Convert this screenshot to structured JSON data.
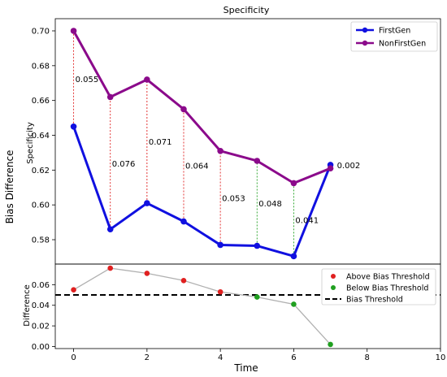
{
  "figure": {
    "ylabel": "Bias Difference",
    "xlabel": "Time"
  },
  "chart_data": [
    {
      "type": "line",
      "title": "Specificity",
      "xlabel": "",
      "ylabel": "Specificity",
      "x": [
        0,
        1,
        2,
        3,
        4,
        5,
        6,
        7
      ],
      "xlim": [
        -0.5,
        10
      ],
      "ylim": [
        0.566,
        0.707
      ],
      "yticks": [
        0.58,
        0.6,
        0.62,
        0.64,
        0.66,
        0.68,
        0.7
      ],
      "ytick_labels": [
        "0.58",
        "0.60",
        "0.62",
        "0.64",
        "0.66",
        "0.68",
        "0.70"
      ],
      "series": [
        {
          "name": "FirstGen",
          "color": "#1010e0",
          "values": [
            0.645,
            0.586,
            0.601,
            0.5905,
            0.577,
            0.5765,
            0.5705,
            0.623
          ]
        },
        {
          "name": "NonFirstGen",
          "color": "#8b0a8b",
          "values": [
            0.7,
            0.662,
            0.672,
            0.655,
            0.631,
            0.6253,
            0.6125,
            0.621
          ]
        }
      ],
      "difference_labels": [
        "0.055",
        "0.076",
        "0.071",
        "0.064",
        "0.053",
        "0.048",
        "0.041",
        "0.002"
      ],
      "connector_colors": [
        "#e02020",
        "#e02020",
        "#e02020",
        "#e02020",
        "#e02020",
        "#20a020",
        "#20a020",
        null
      ],
      "legend_position": "top-right",
      "grid": false
    },
    {
      "type": "scatter",
      "title": "",
      "xlabel": "Time",
      "ylabel": "Difference",
      "x": [
        0,
        1,
        2,
        3,
        4,
        5,
        6,
        7
      ],
      "values": [
        0.055,
        0.076,
        0.071,
        0.064,
        0.053,
        0.048,
        0.041,
        0.002
      ],
      "point_status": [
        "above",
        "above",
        "above",
        "above",
        "above",
        "below",
        "below",
        "below"
      ],
      "threshold": 0.05,
      "xlim": [
        -0.5,
        10
      ],
      "ylim": [
        -0.002,
        0.08
      ],
      "xticks": [
        0,
        2,
        4,
        6,
        8,
        10
      ],
      "xtick_labels": [
        "0",
        "2",
        "4",
        "6",
        "8",
        "10"
      ],
      "yticks": [
        0.0,
        0.02,
        0.04,
        0.06
      ],
      "ytick_labels": [
        "0.00",
        "0.02",
        "0.04",
        "0.06"
      ],
      "legend": [
        {
          "label": "Above Bias Threshold",
          "color": "#e02020",
          "marker": "dot"
        },
        {
          "label": "Below Bias Threshold",
          "color": "#20a020",
          "marker": "dot"
        },
        {
          "label": "Bias Threshold",
          "color": "#000000",
          "marker": "dashed-line"
        }
      ],
      "line_color": "#b0b0b0",
      "legend_position": "top-right",
      "grid": false
    }
  ]
}
